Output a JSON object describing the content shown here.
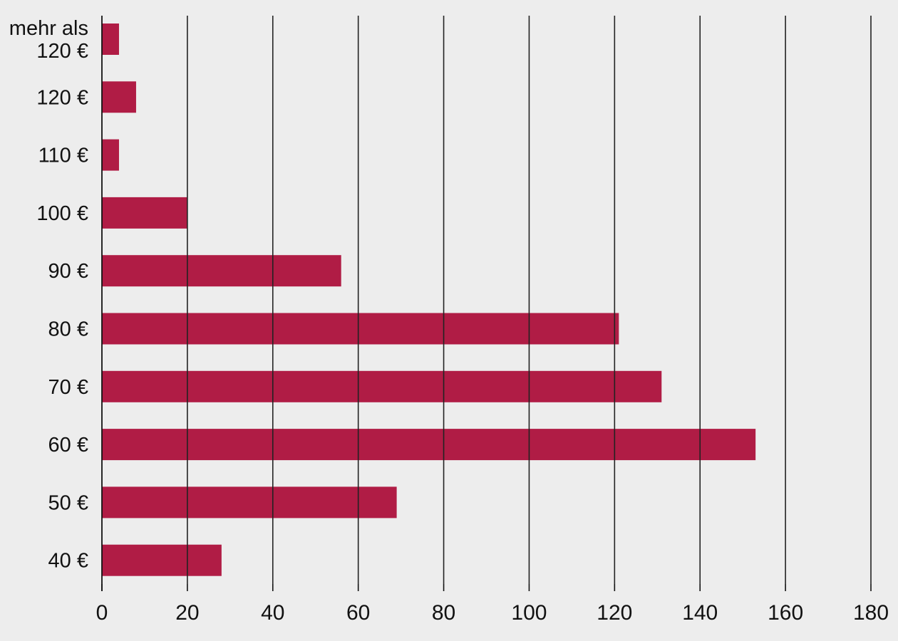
{
  "chart_data": {
    "type": "bar",
    "orientation": "horizontal",
    "categories": [
      [
        "mehr als",
        "120 €"
      ],
      [
        "120 €"
      ],
      [
        "110 €"
      ],
      [
        "100 €"
      ],
      [
        "90 €"
      ],
      [
        "80 €"
      ],
      [
        "70 €"
      ],
      [
        "60 €"
      ],
      [
        "50 €"
      ],
      [
        "40 €"
      ]
    ],
    "values": [
      4,
      8,
      4,
      20,
      56,
      121,
      131,
      153,
      69,
      28
    ],
    "xlim": [
      0,
      180
    ],
    "xticks": [
      0,
      20,
      40,
      60,
      80,
      100,
      120,
      140,
      160,
      180
    ],
    "grid": "vertical",
    "title": "",
    "xlabel": "",
    "ylabel": "",
    "colors": {
      "bar": "#b01c45",
      "background": "#ededed",
      "grid": "#222222",
      "axis": "#111111"
    }
  }
}
